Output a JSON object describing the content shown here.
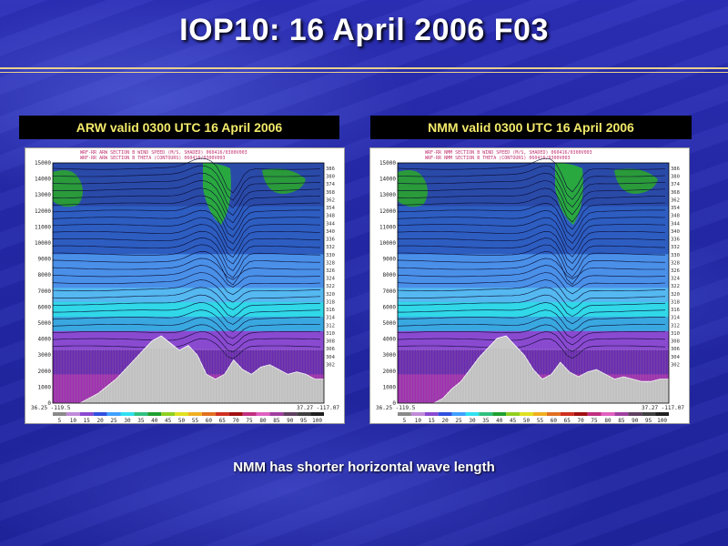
{
  "slide": {
    "title": "IOP10: 16 April 2006 F03",
    "footer": "NMM has shorter horizontal wave length"
  },
  "panels": [
    {
      "id": "arw",
      "title": "ARW valid 0300 UTC 16 April 2006",
      "header1": "WRF-RR ARW SECTION B WIND SPEED (M/S, SHADED)   060416/0300V003",
      "header2": "WRF-RR ARW SECTION B THETA (CONTOURS)   060416/0300V003",
      "left_x_label": "36.25 -119.5",
      "right_x_label": "37.27 -117.07"
    },
    {
      "id": "nmm",
      "title": "NMM valid 0300 UTC 16 April 2006",
      "header1": "WRF-RR NMM SECTION B WIND SPEED (M/S, SHADED)   060416/0300V003",
      "header2": "WRF-RR NMM SECTION B THETA (CONTOURS)   060416/0300V003",
      "left_x_label": "36.25 -119.5",
      "right_x_label": "37.27 -117.07"
    }
  ],
  "y_ticks": [
    "15000",
    "14000",
    "13000",
    "12000",
    "11000",
    "10000",
    "9000",
    "8000",
    "7000",
    "6000",
    "5000",
    "4000",
    "3000",
    "2000",
    "1000",
    "0"
  ],
  "theta_labels": [
    "386",
    "380",
    "374",
    "368",
    "362",
    "354",
    "348",
    "344",
    "340",
    "336",
    "332",
    "330",
    "328",
    "326",
    "324",
    "322",
    "320",
    "318",
    "316",
    "314",
    "312",
    "310",
    "308",
    "306",
    "304",
    "302"
  ],
  "colorbar_ticks": [
    "5",
    "10",
    "15",
    "20",
    "25",
    "30",
    "35",
    "40",
    "45",
    "50",
    "55",
    "60",
    "65",
    "70",
    "75",
    "80",
    "85",
    "90",
    "95",
    "100"
  ],
  "colorbar_colors": [
    "#8a8a8a",
    "#c08ad8",
    "#8a4ad0",
    "#3050e0",
    "#40a0ff",
    "#30e0f0",
    "#30c080",
    "#20a030",
    "#90d020",
    "#e0e020",
    "#f0b020",
    "#e07020",
    "#d03020",
    "#a01010",
    "#c03080",
    "#e060c0",
    "#a040a0",
    "#604060",
    "#404040",
    "#202020"
  ]
}
